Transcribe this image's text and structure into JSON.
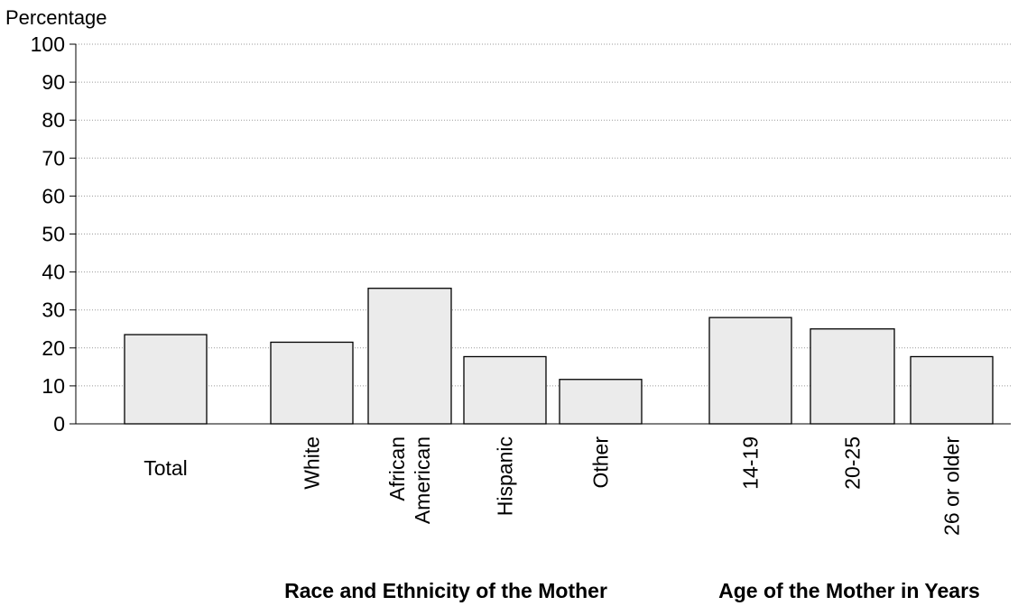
{
  "chart_data": {
    "type": "bar",
    "ylabel": "Percentage",
    "ylim": [
      0,
      100
    ],
    "y_ticks": [
      "0",
      "10",
      "20",
      "30",
      "40",
      "50",
      "60",
      "70",
      "80",
      "90",
      "100"
    ],
    "grid": "horizontal dotted",
    "bar_color": "#ebebeb",
    "categories": [
      {
        "label": "Total",
        "value": 23.5,
        "group": ""
      },
      {
        "label": "White",
        "value": 21.5,
        "group": "race"
      },
      {
        "label": "African American",
        "label_lines": [
          "African",
          "American"
        ],
        "value": 35.7,
        "group": "race"
      },
      {
        "label": "Hispanic",
        "value": 17.7,
        "group": "race"
      },
      {
        "label": "Other",
        "value": 11.7,
        "group": "race"
      },
      {
        "label": "14-19",
        "value": 28.0,
        "group": "age"
      },
      {
        "label": "20-25",
        "value": 25.0,
        "group": "age"
      },
      {
        "label": "26 or older",
        "value": 17.7,
        "group": "age"
      }
    ],
    "groups": {
      "race": "Race and Ethnicity of the Mother",
      "age": "Age of the Mother in Years"
    }
  }
}
